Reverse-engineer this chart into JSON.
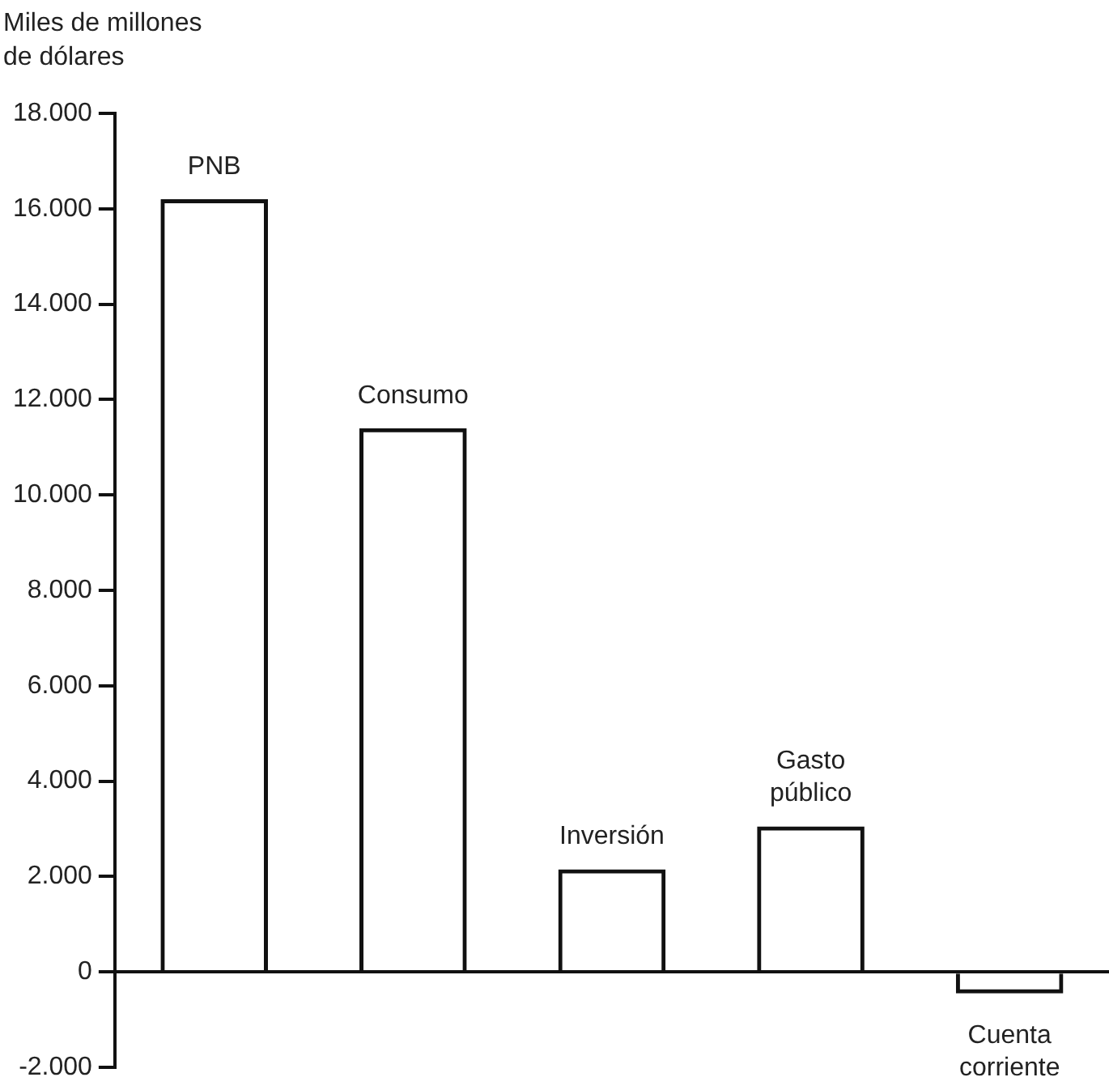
{
  "chart_data": {
    "type": "bar",
    "ylabel": "Miles de millones\nde dólares",
    "categories": [
      "PNB",
      "Consumo",
      "Inversión",
      "Gasto público",
      "Cuenta corriente"
    ],
    "values": [
      16200,
      11400,
      2150,
      3050,
      -450
    ],
    "color": "#111111",
    "ylim": [
      -2000,
      18000
    ],
    "yticks": [
      {
        "value": -2000,
        "label": "-2.000"
      },
      {
        "value": 0,
        "label": "0"
      },
      {
        "value": 2000,
        "label": "2.000"
      },
      {
        "value": 4000,
        "label": "4.000"
      },
      {
        "value": 6000,
        "label": "6.000"
      },
      {
        "value": 8000,
        "label": "8.000"
      },
      {
        "value": 10000,
        "label": "10.000"
      },
      {
        "value": 12000,
        "label": "12.000"
      },
      {
        "value": 14000,
        "label": "14.000"
      },
      {
        "value": 16000,
        "label": "16.000"
      },
      {
        "value": 18000,
        "label": "18.000"
      }
    ],
    "legend": false
  }
}
